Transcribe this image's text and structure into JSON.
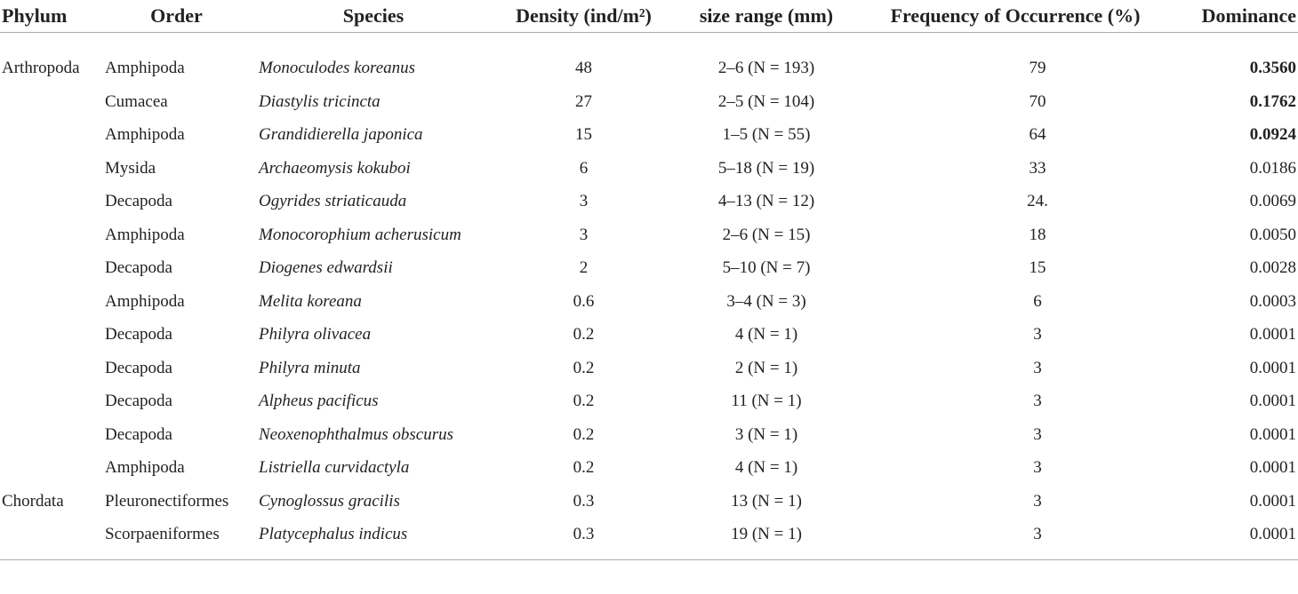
{
  "table": {
    "columns": [
      "Phylum",
      "Order",
      "Species",
      "Density (ind/m²)",
      "size range (mm)",
      "Frequency of Occurrence (%)",
      "Dominance"
    ],
    "groups": [
      {
        "phylum": "Arthropoda",
        "rows": [
          {
            "order": "Amphipoda",
            "species": "Monoculodes koreanus",
            "density": "48",
            "size": "2–6 (N = 193)",
            "frequency": "79",
            "dominance": "0.3560",
            "bold": true
          },
          {
            "order": "Cumacea",
            "species": "Diastylis tricincta",
            "density": "27",
            "size": "2–5 (N = 104)",
            "frequency": "70",
            "dominance": "0.1762",
            "bold": true
          },
          {
            "order": "Amphipoda",
            "species": "Grandidierella japonica",
            "density": "15",
            "size": "1–5 (N = 55)",
            "frequency": "64",
            "dominance": "0.0924",
            "bold": true
          },
          {
            "order": "Mysida",
            "species": "Archaeomysis kokuboi",
            "density": "6",
            "size": "5–18 (N = 19)",
            "frequency": "33",
            "dominance": "0.0186",
            "bold": false
          },
          {
            "order": "Decapoda",
            "species": "Ogyrides striaticauda",
            "density": "3",
            "size": "4–13 (N = 12)",
            "frequency": "24.",
            "dominance": "0.0069",
            "bold": false
          },
          {
            "order": "Amphipoda",
            "species": "Monocorophium acherusicum",
            "density": "3",
            "size": "2–6 (N = 15)",
            "frequency": "18",
            "dominance": "0.0050",
            "bold": false
          },
          {
            "order": "Decapoda",
            "species": "Diogenes edwardsii",
            "density": "2",
            "size": "5–10 (N = 7)",
            "frequency": "15",
            "dominance": "0.0028",
            "bold": false
          },
          {
            "order": "Amphipoda",
            "species": "Melita koreana",
            "density": "0.6",
            "size": "3–4 (N = 3)",
            "frequency": "6",
            "dominance": "0.0003",
            "bold": false
          },
          {
            "order": "Decapoda",
            "species": "Philyra olivacea",
            "density": "0.2",
            "size": "4 (N = 1)",
            "frequency": "3",
            "dominance": "0.0001",
            "bold": false
          },
          {
            "order": "Decapoda",
            "species": "Philyra minuta",
            "density": "0.2",
            "size": "2 (N = 1)",
            "frequency": "3",
            "dominance": "0.0001",
            "bold": false
          },
          {
            "order": "Decapoda",
            "species": "Alpheus pacificus",
            "density": "0.2",
            "size": "11 (N = 1)",
            "frequency": "3",
            "dominance": "0.0001",
            "bold": false
          },
          {
            "order": "Decapoda",
            "species": "Neoxenophthalmus obscurus",
            "density": "0.2",
            "size": "3 (N = 1)",
            "frequency": "3",
            "dominance": "0.0001",
            "bold": false
          },
          {
            "order": "Amphipoda",
            "species": "Listriella curvidactyla",
            "density": "0.2",
            "size": "4 (N = 1)",
            "frequency": "3",
            "dominance": "0.0001",
            "bold": false
          }
        ]
      },
      {
        "phylum": "Chordata",
        "rows": [
          {
            "order": "Pleuronectiformes",
            "species": "Cynoglossus gracilis",
            "density": "0.3",
            "size": "13 (N = 1)",
            "frequency": "3",
            "dominance": "0.0001",
            "bold": false
          },
          {
            "order": "Scorpaeniformes",
            "species": "Platycephalus indicus",
            "density": "0.3",
            "size": "19 (N = 1)",
            "frequency": "3",
            "dominance": "0.0001",
            "bold": false
          }
        ]
      }
    ]
  }
}
